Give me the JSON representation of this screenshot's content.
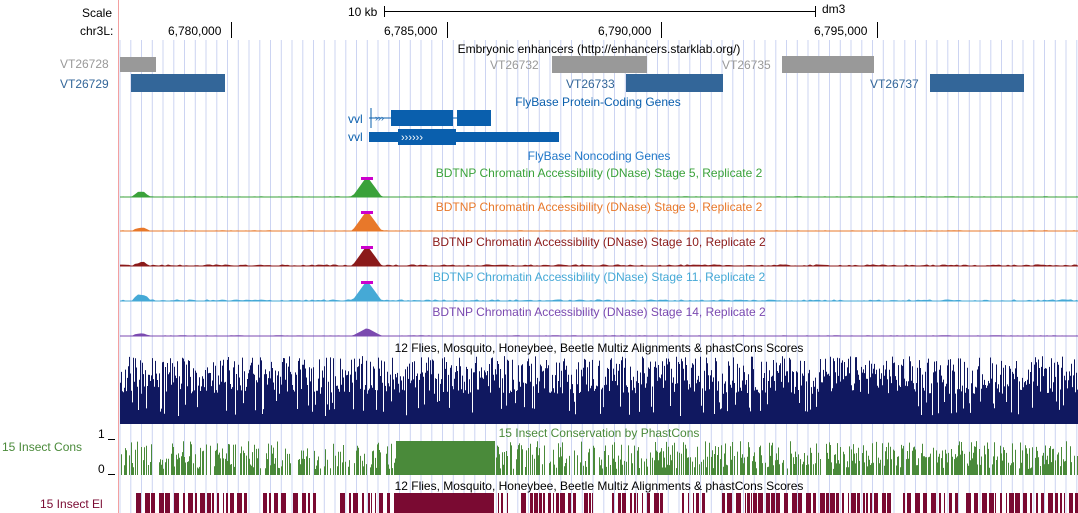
{
  "ruler": {
    "scale_label": "Scale",
    "chrom_label": "chr3L:",
    "scale_bar_text": "10 kb",
    "assembly": "dm3",
    "positions": [
      "6,780,000",
      "6,785,000",
      "6,790,000",
      "6,795,000"
    ]
  },
  "colors": {
    "enhancer_gray": "#999999",
    "enhancer_blue": "#336699",
    "flybase_blue": "#0a5fad",
    "stage5": "#3aa23a",
    "stage9": "#e8782a",
    "stage10": "#8b1a1a",
    "stage11": "#45a9d6",
    "stage14": "#7b4ab0",
    "peak_top": "#cc00cc",
    "multiz": "#101860",
    "cons": "#4a8a3a",
    "elements": "#7a0a32",
    "grid": "#ccd4f2",
    "left_border": "#f3a0a0"
  },
  "tracks": {
    "enhancers": {
      "title": "Embryonic enhancers (http://enhancers.starklab.org/)",
      "labels": [
        "VT26728",
        "VT26729",
        "VT26732",
        "VT26733",
        "VT26735",
        "VT26737"
      ]
    },
    "flybase_coding": {
      "title": "FlyBase Protein-Coding Genes",
      "genes": [
        "vvl",
        "vvl"
      ]
    },
    "flybase_noncoding": {
      "title": "FlyBase Noncoding Genes"
    },
    "dnase": [
      {
        "title": "BDTNP Chromatin Accessibility (DNase) Stage 5, Replicate 2"
      },
      {
        "title": "BDTNP Chromatin Accessibility (DNase) Stage 9, Replicate 2"
      },
      {
        "title": "BDTNP Chromatin Accessibility (DNase) Stage 10, Replicate 2"
      },
      {
        "title": "BDTNP Chromatin Accessibility (DNase) Stage 11, Replicate 2"
      },
      {
        "title": "BDTNP Chromatin Accessibility (DNase) Stage 14, Replicate 2"
      }
    ],
    "multiz": {
      "title": "12 Flies, Mosquito, Honeybee, Beetle Multiz Alignments & phastCons Scores"
    },
    "cons": {
      "title": "15 Insect Conservation by PhastCons",
      "side_label": "15 Insect Cons",
      "axis_max": "1",
      "axis_min": "0"
    },
    "elements": {
      "title": "12 Flies, Mosquito, Honeybee, Beetle Multiz Alignments & phastCons Scores",
      "side_label": "15 Insect El"
    }
  }
}
